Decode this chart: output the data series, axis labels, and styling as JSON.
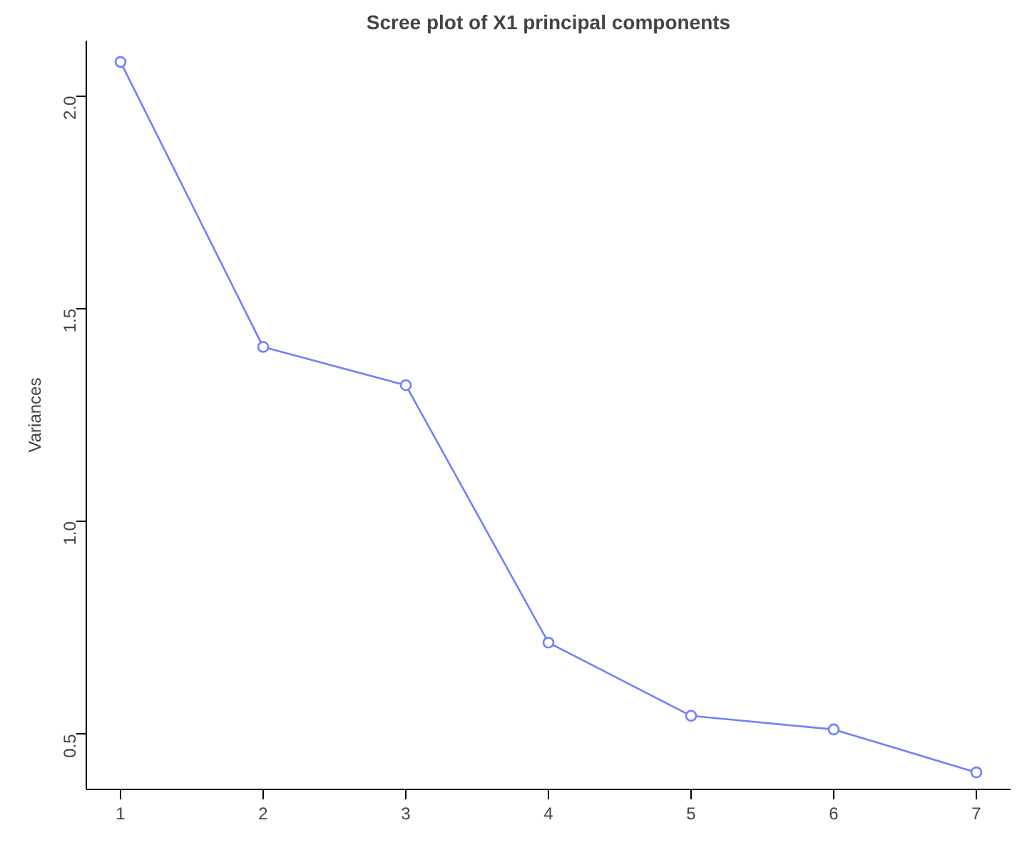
{
  "chart_data": {
    "type": "line",
    "title": "Scree plot of X1 principal components",
    "ylabel": "Variances",
    "x": [
      1,
      2,
      3,
      4,
      5,
      6,
      7
    ],
    "series": [
      {
        "color": "#6f7fff",
        "values": [
          2.08,
          1.41,
          1.32,
          0.715,
          0.543,
          0.511,
          0.41
        ]
      }
    ],
    "xlim": [
      0.76,
      7.24
    ],
    "ylim": [
      0.37,
      2.13
    ],
    "xticks": [
      1,
      2,
      3,
      4,
      5,
      6,
      7
    ],
    "yticks": [
      0.5,
      {
        "value": 1,
        "label": "1.0"
      },
      1.5,
      {
        "value": 2,
        "label": "2.0"
      }
    ],
    "marker": "circle",
    "grid": false
  }
}
